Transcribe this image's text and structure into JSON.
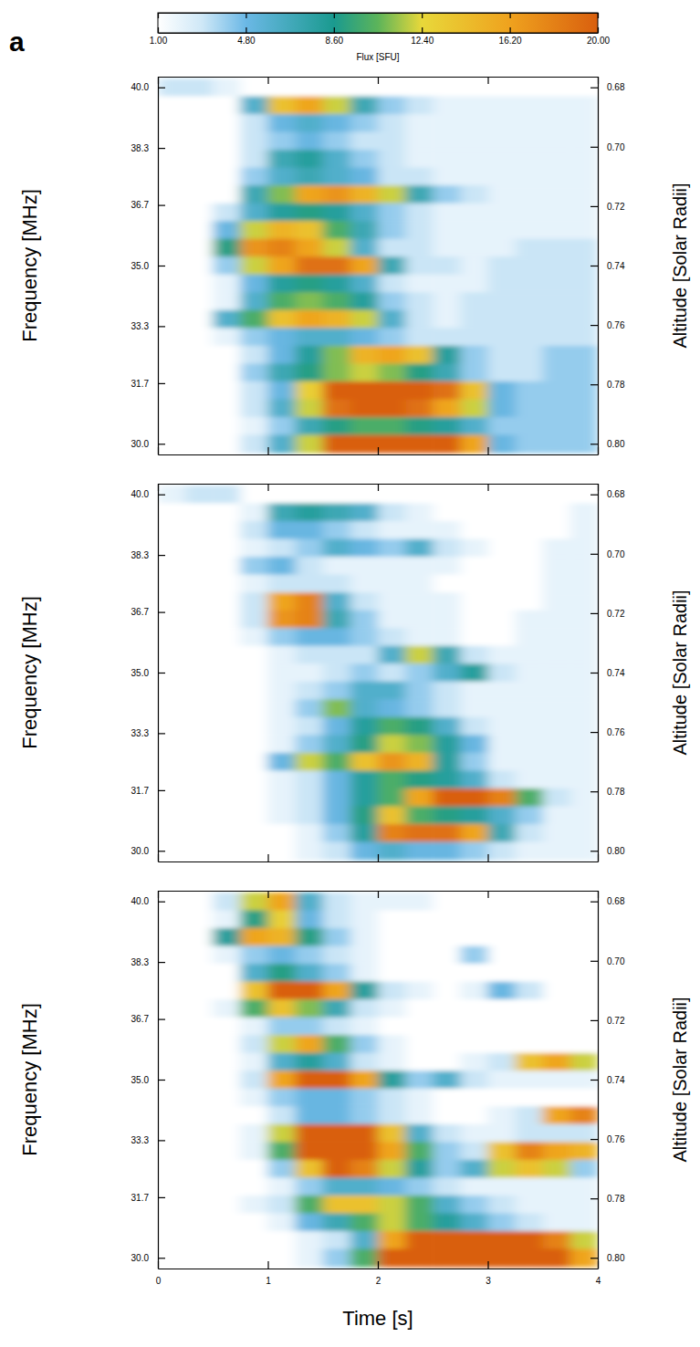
{
  "panel_label": "a",
  "colorbar": {
    "title": "Flux [SFU]",
    "range": [
      1,
      20
    ],
    "ticks": [
      {
        "value": 1,
        "label": "1.00"
      },
      {
        "value": 4.8,
        "label": "4.80"
      },
      {
        "value": 8.6,
        "label": "8.60"
      },
      {
        "value": 12.4,
        "label": "12.40"
      },
      {
        "value": 16.2,
        "label": "16.20"
      },
      {
        "value": 20,
        "label": "20.00"
      }
    ]
  },
  "chart_data": [
    {
      "type": "heatmap",
      "tick_labels": "y",
      "ylabel": "Frequency [MHz]",
      "y2label": "Altitude [Solar Radii]",
      "xlim": [
        0,
        4
      ],
      "xticks": [
        0,
        1,
        2,
        3,
        4
      ],
      "ylim": [
        29.7,
        40.3
      ],
      "yticks": [
        {
          "value": 40,
          "label": "40.0"
        },
        38.3,
        36.7,
        {
          "value": 35,
          "label": "35.0"
        },
        33.3,
        31.7,
        {
          "value": 30,
          "label": "30.0"
        }
      ],
      "y2lim": [
        0.8036,
        0.6764
      ],
      "y2ticks": [
        0.68,
        {
          "value": 0.7,
          "label": "0.70"
        },
        0.72,
        0.74,
        0.76,
        0.78,
        {
          "value": 0.8,
          "label": "0.80"
        }
      ],
      "x": [
        0.125,
        0.375,
        0.625,
        0.875,
        1.125,
        1.375,
        1.625,
        1.875,
        2.125,
        2.375,
        2.625,
        2.875,
        3.125,
        3.375,
        3.625,
        3.875
      ],
      "y": [
        40,
        39.5,
        39,
        38.5,
        38,
        37.5,
        37,
        36.5,
        36,
        35.5,
        35,
        34.5,
        34,
        33.5,
        33,
        32.5,
        32,
        31.5,
        31,
        30.5,
        30
      ],
      "z": [
        [
          3,
          3,
          2,
          1,
          1,
          1,
          1,
          1,
          1,
          1,
          1,
          1,
          1,
          1,
          1,
          1
        ],
        [
          1,
          1,
          1,
          6,
          14,
          16,
          12,
          7,
          4,
          3,
          2,
          2,
          2,
          2,
          2,
          2
        ],
        [
          1,
          1,
          1,
          3,
          5,
          6,
          5,
          4,
          3,
          2,
          2,
          2,
          2,
          2,
          2,
          2
        ],
        [
          1,
          1,
          1,
          3,
          4,
          5,
          4,
          3,
          3,
          2,
          2,
          2,
          2,
          2,
          2,
          2
        ],
        [
          1,
          1,
          1,
          3,
          7,
          8,
          6,
          4,
          3,
          2,
          2,
          2,
          2,
          2,
          2,
          2
        ],
        [
          1,
          1,
          1,
          4,
          6,
          7,
          6,
          5,
          3,
          3,
          2,
          2,
          2,
          2,
          2,
          2
        ],
        [
          1,
          1,
          1,
          7,
          11,
          16,
          17,
          15,
          12,
          7,
          4,
          3,
          2,
          2,
          2,
          2
        ],
        [
          1,
          1,
          3,
          6,
          8,
          9,
          8,
          6,
          4,
          3,
          2,
          2,
          2,
          2,
          2,
          2
        ],
        [
          1,
          1,
          5,
          12,
          15,
          14,
          10,
          7,
          4,
          3,
          2,
          2,
          2,
          2,
          2,
          2
        ],
        [
          1,
          1,
          9,
          17,
          18,
          16,
          12,
          6,
          3,
          3,
          2,
          2,
          2,
          3,
          3,
          3
        ],
        [
          1,
          1,
          4,
          12,
          16,
          19,
          19,
          16,
          7,
          3,
          3,
          2,
          3,
          3,
          3,
          3
        ],
        [
          1,
          1,
          2,
          5,
          8,
          9,
          8,
          6,
          3,
          2,
          2,
          2,
          3,
          3,
          3,
          3
        ],
        [
          1,
          1,
          2,
          6,
          10,
          11,
          10,
          8,
          4,
          3,
          2,
          3,
          3,
          3,
          3,
          3
        ],
        [
          1,
          1,
          6,
          10,
          14,
          16,
          15,
          12,
          6,
          3,
          2,
          3,
          3,
          3,
          3,
          3
        ],
        [
          1,
          1,
          2,
          4,
          5,
          6,
          6,
          5,
          4,
          3,
          3,
          3,
          3,
          3,
          3,
          3
        ],
        [
          1,
          1,
          1,
          3,
          5,
          8,
          11,
          15,
          16,
          14,
          8,
          4,
          3,
          3,
          4,
          4
        ],
        [
          1,
          1,
          1,
          4,
          7,
          9,
          11,
          12,
          11,
          9,
          7,
          4,
          3,
          3,
          4,
          4
        ],
        [
          1,
          1,
          1,
          3,
          5,
          13,
          20,
          20,
          20,
          20,
          19,
          14,
          5,
          4,
          4,
          4
        ],
        [
          1,
          1,
          1,
          3,
          6,
          12,
          19,
          20,
          20,
          19,
          16,
          12,
          5,
          4,
          4,
          4
        ],
        [
          1,
          1,
          1,
          2,
          4,
          7,
          9,
          10,
          10,
          9,
          8,
          6,
          4,
          4,
          4,
          4
        ],
        [
          1,
          1,
          1,
          3,
          6,
          12,
          20,
          20,
          20,
          20,
          20,
          16,
          5,
          4,
          4,
          4
        ]
      ]
    },
    {
      "type": "heatmap",
      "tick_labels": "y",
      "ylabel": "Frequency [MHz]",
      "y2label": "Altitude [Solar Radii]",
      "xlim": [
        0,
        4
      ],
      "xticks": [
        0,
        1,
        2,
        3,
        4
      ],
      "ylim": [
        29.7,
        40.3
      ],
      "yticks": [
        {
          "value": 40,
          "label": "40.0"
        },
        38.3,
        36.7,
        {
          "value": 35,
          "label": "35.0"
        },
        33.3,
        31.7,
        {
          "value": 30,
          "label": "30.0"
        }
      ],
      "y2lim": [
        0.8036,
        0.6764
      ],
      "y2ticks": [
        0.68,
        {
          "value": 0.7,
          "label": "0.70"
        },
        0.72,
        0.74,
        0.76,
        0.78,
        {
          "value": 0.8,
          "label": "0.80"
        }
      ],
      "x": [
        0.125,
        0.375,
        0.625,
        0.875,
        1.125,
        1.375,
        1.625,
        1.875,
        2.125,
        2.375,
        2.625,
        2.875,
        3.125,
        3.375,
        3.625,
        3.875
      ],
      "y": [
        40,
        39.5,
        39,
        38.5,
        38,
        37.5,
        37,
        36.5,
        36,
        35.5,
        35,
        34.5,
        34,
        33.5,
        33,
        32.5,
        32,
        31.5,
        31,
        30.5,
        30
      ],
      "z": [
        [
          2,
          3,
          3,
          1,
          1,
          1,
          1,
          1,
          1,
          1,
          1,
          1,
          1,
          1,
          1,
          1
        ],
        [
          1,
          1,
          1,
          2,
          7,
          8,
          7,
          6,
          3,
          2,
          1,
          1,
          1,
          1,
          1,
          2
        ],
        [
          1,
          1,
          1,
          3,
          5,
          5,
          4,
          3,
          2,
          2,
          2,
          1,
          1,
          1,
          1,
          2
        ],
        [
          1,
          1,
          1,
          2,
          3,
          4,
          6,
          5,
          4,
          6,
          3,
          2,
          1,
          1,
          2,
          2
        ],
        [
          1,
          1,
          1,
          4,
          5,
          3,
          2,
          2,
          2,
          2,
          2,
          1,
          1,
          1,
          2,
          2
        ],
        [
          1,
          1,
          1,
          2,
          3,
          3,
          3,
          2,
          2,
          2,
          1,
          1,
          1,
          1,
          2,
          2
        ],
        [
          1,
          1,
          1,
          3,
          16,
          18,
          6,
          3,
          2,
          2,
          2,
          1,
          1,
          1,
          2,
          2
        ],
        [
          1,
          1,
          1,
          3,
          17,
          18,
          7,
          4,
          2,
          2,
          2,
          1,
          1,
          2,
          2,
          2
        ],
        [
          1,
          1,
          1,
          2,
          4,
          5,
          5,
          4,
          3,
          2,
          2,
          1,
          1,
          2,
          2,
          2
        ],
        [
          1,
          1,
          1,
          1,
          2,
          3,
          3,
          3,
          6,
          12,
          7,
          3,
          2,
          2,
          2,
          2
        ],
        [
          1,
          1,
          1,
          1,
          2,
          2,
          3,
          4,
          3,
          4,
          6,
          8,
          3,
          2,
          2,
          2
        ],
        [
          1,
          1,
          1,
          1,
          2,
          3,
          4,
          6,
          6,
          4,
          3,
          2,
          2,
          2,
          2,
          2
        ],
        [
          1,
          1,
          1,
          1,
          2,
          4,
          11,
          6,
          5,
          4,
          3,
          2,
          2,
          2,
          2,
          2
        ],
        [
          1,
          1,
          1,
          1,
          2,
          3,
          5,
          8,
          10,
          9,
          6,
          3,
          2,
          2,
          2,
          2
        ],
        [
          1,
          1,
          1,
          1,
          2,
          4,
          6,
          9,
          12,
          11,
          8,
          5,
          2,
          2,
          2,
          2
        ],
        [
          1,
          1,
          1,
          1,
          5,
          12,
          10,
          14,
          17,
          15,
          8,
          4,
          2,
          2,
          2,
          2
        ],
        [
          1,
          1,
          1,
          1,
          2,
          3,
          5,
          8,
          10,
          9,
          8,
          6,
          3,
          2,
          2,
          2
        ],
        [
          1,
          1,
          1,
          1,
          2,
          3,
          5,
          8,
          10,
          16,
          20,
          20,
          18,
          10,
          3,
          2
        ],
        [
          1,
          1,
          1,
          1,
          2,
          3,
          5,
          9,
          14,
          10,
          9,
          8,
          6,
          4,
          2,
          2
        ],
        [
          1,
          1,
          1,
          1,
          1,
          2,
          4,
          8,
          18,
          19,
          19,
          16,
          7,
          3,
          2,
          2
        ],
        [
          1,
          1,
          1,
          1,
          1,
          2,
          3,
          5,
          6,
          5,
          5,
          4,
          3,
          2,
          2,
          2
        ]
      ]
    },
    {
      "type": "heatmap",
      "xlabel": "Time [s]",
      "ylabel": "Frequency [MHz]",
      "y2label": "Altitude [Solar Radii]",
      "xlim": [
        0,
        4
      ],
      "xticks": [
        0,
        1,
        2,
        3,
        4
      ],
      "ylim": [
        29.7,
        40.3
      ],
      "yticks": [
        {
          "value": 40,
          "label": "40.0"
        },
        38.3,
        36.7,
        {
          "value": 35,
          "label": "35.0"
        },
        33.3,
        31.7,
        {
          "value": 30,
          "label": "30.0"
        }
      ],
      "y2lim": [
        0.8036,
        0.6764
      ],
      "y2ticks": [
        0.68,
        {
          "value": 0.7,
          "label": "0.70"
        },
        0.72,
        0.74,
        0.76,
        0.78,
        {
          "value": 0.8,
          "label": "0.80"
        }
      ],
      "x": [
        0.125,
        0.375,
        0.625,
        0.875,
        1.125,
        1.375,
        1.625,
        1.875,
        2.125,
        2.375,
        2.625,
        2.875,
        3.125,
        3.375,
        3.625,
        3.875
      ],
      "y": [
        40,
        39.5,
        39,
        38.5,
        38,
        37.5,
        37,
        36.5,
        36,
        35.5,
        35,
        34.5,
        34,
        33.5,
        33,
        32.5,
        32,
        31.5,
        31,
        30.5,
        30
      ],
      "z": [
        [
          1,
          1,
          3,
          12,
          16,
          6,
          3,
          2,
          2,
          2,
          1,
          1,
          1,
          1,
          1,
          1
        ],
        [
          1,
          1,
          2,
          9,
          13,
          5,
          3,
          2,
          1,
          1,
          1,
          1,
          1,
          1,
          1,
          1
        ],
        [
          1,
          1,
          8,
          16,
          15,
          9,
          4,
          2,
          1,
          1,
          1,
          1,
          1,
          1,
          1,
          1
        ],
        [
          1,
          1,
          2,
          4,
          5,
          4,
          3,
          2,
          1,
          1,
          1,
          4,
          1,
          1,
          1,
          1
        ],
        [
          1,
          1,
          1,
          6,
          9,
          6,
          4,
          2,
          1,
          1,
          1,
          1,
          1,
          1,
          1,
          1
        ],
        [
          1,
          1,
          1,
          14,
          20,
          20,
          16,
          8,
          3,
          2,
          1,
          2,
          5,
          3,
          1,
          1
        ],
        [
          1,
          1,
          2,
          10,
          14,
          11,
          7,
          3,
          2,
          1,
          1,
          1,
          1,
          1,
          1,
          1
        ],
        [
          1,
          1,
          1,
          2,
          4,
          4,
          3,
          2,
          1,
          1,
          1,
          1,
          1,
          1,
          1,
          1
        ],
        [
          1,
          1,
          1,
          3,
          12,
          16,
          10,
          4,
          2,
          1,
          1,
          1,
          1,
          1,
          1,
          1
        ],
        [
          1,
          1,
          1,
          2,
          6,
          8,
          6,
          3,
          2,
          1,
          1,
          2,
          3,
          14,
          16,
          12
        ],
        [
          1,
          1,
          1,
          3,
          16,
          20,
          20,
          16,
          8,
          4,
          6,
          3,
          2,
          2,
          2,
          2
        ],
        [
          1,
          1,
          1,
          2,
          4,
          5,
          5,
          4,
          3,
          2,
          1,
          1,
          1,
          1,
          1,
          1
        ],
        [
          1,
          1,
          1,
          1,
          3,
          5,
          5,
          4,
          3,
          2,
          1,
          1,
          2,
          3,
          16,
          18
        ],
        [
          1,
          1,
          1,
          2,
          12,
          20,
          20,
          20,
          14,
          6,
          3,
          2,
          2,
          3,
          3,
          3
        ],
        [
          1,
          1,
          1,
          2,
          10,
          20,
          20,
          20,
          16,
          10,
          4,
          3,
          14,
          18,
          16,
          15
        ],
        [
          1,
          1,
          1,
          1,
          4,
          14,
          20,
          18,
          12,
          8,
          4,
          6,
          12,
          14,
          12,
          4
        ],
        [
          1,
          1,
          1,
          1,
          2,
          4,
          6,
          6,
          5,
          4,
          3,
          2,
          2,
          2,
          2,
          2
        ],
        [
          1,
          1,
          1,
          2,
          3,
          10,
          14,
          14,
          12,
          10,
          6,
          4,
          3,
          2,
          2,
          2
        ],
        [
          1,
          1,
          1,
          1,
          2,
          5,
          7,
          10,
          12,
          10,
          8,
          6,
          4,
          3,
          2,
          2
        ],
        [
          1,
          1,
          1,
          1,
          1,
          2,
          3,
          6,
          16,
          20,
          20,
          20,
          20,
          20,
          18,
          12
        ],
        [
          1,
          1,
          1,
          1,
          1,
          2,
          4,
          10,
          20,
          20,
          20,
          20,
          20,
          20,
          20,
          16
        ]
      ]
    }
  ]
}
